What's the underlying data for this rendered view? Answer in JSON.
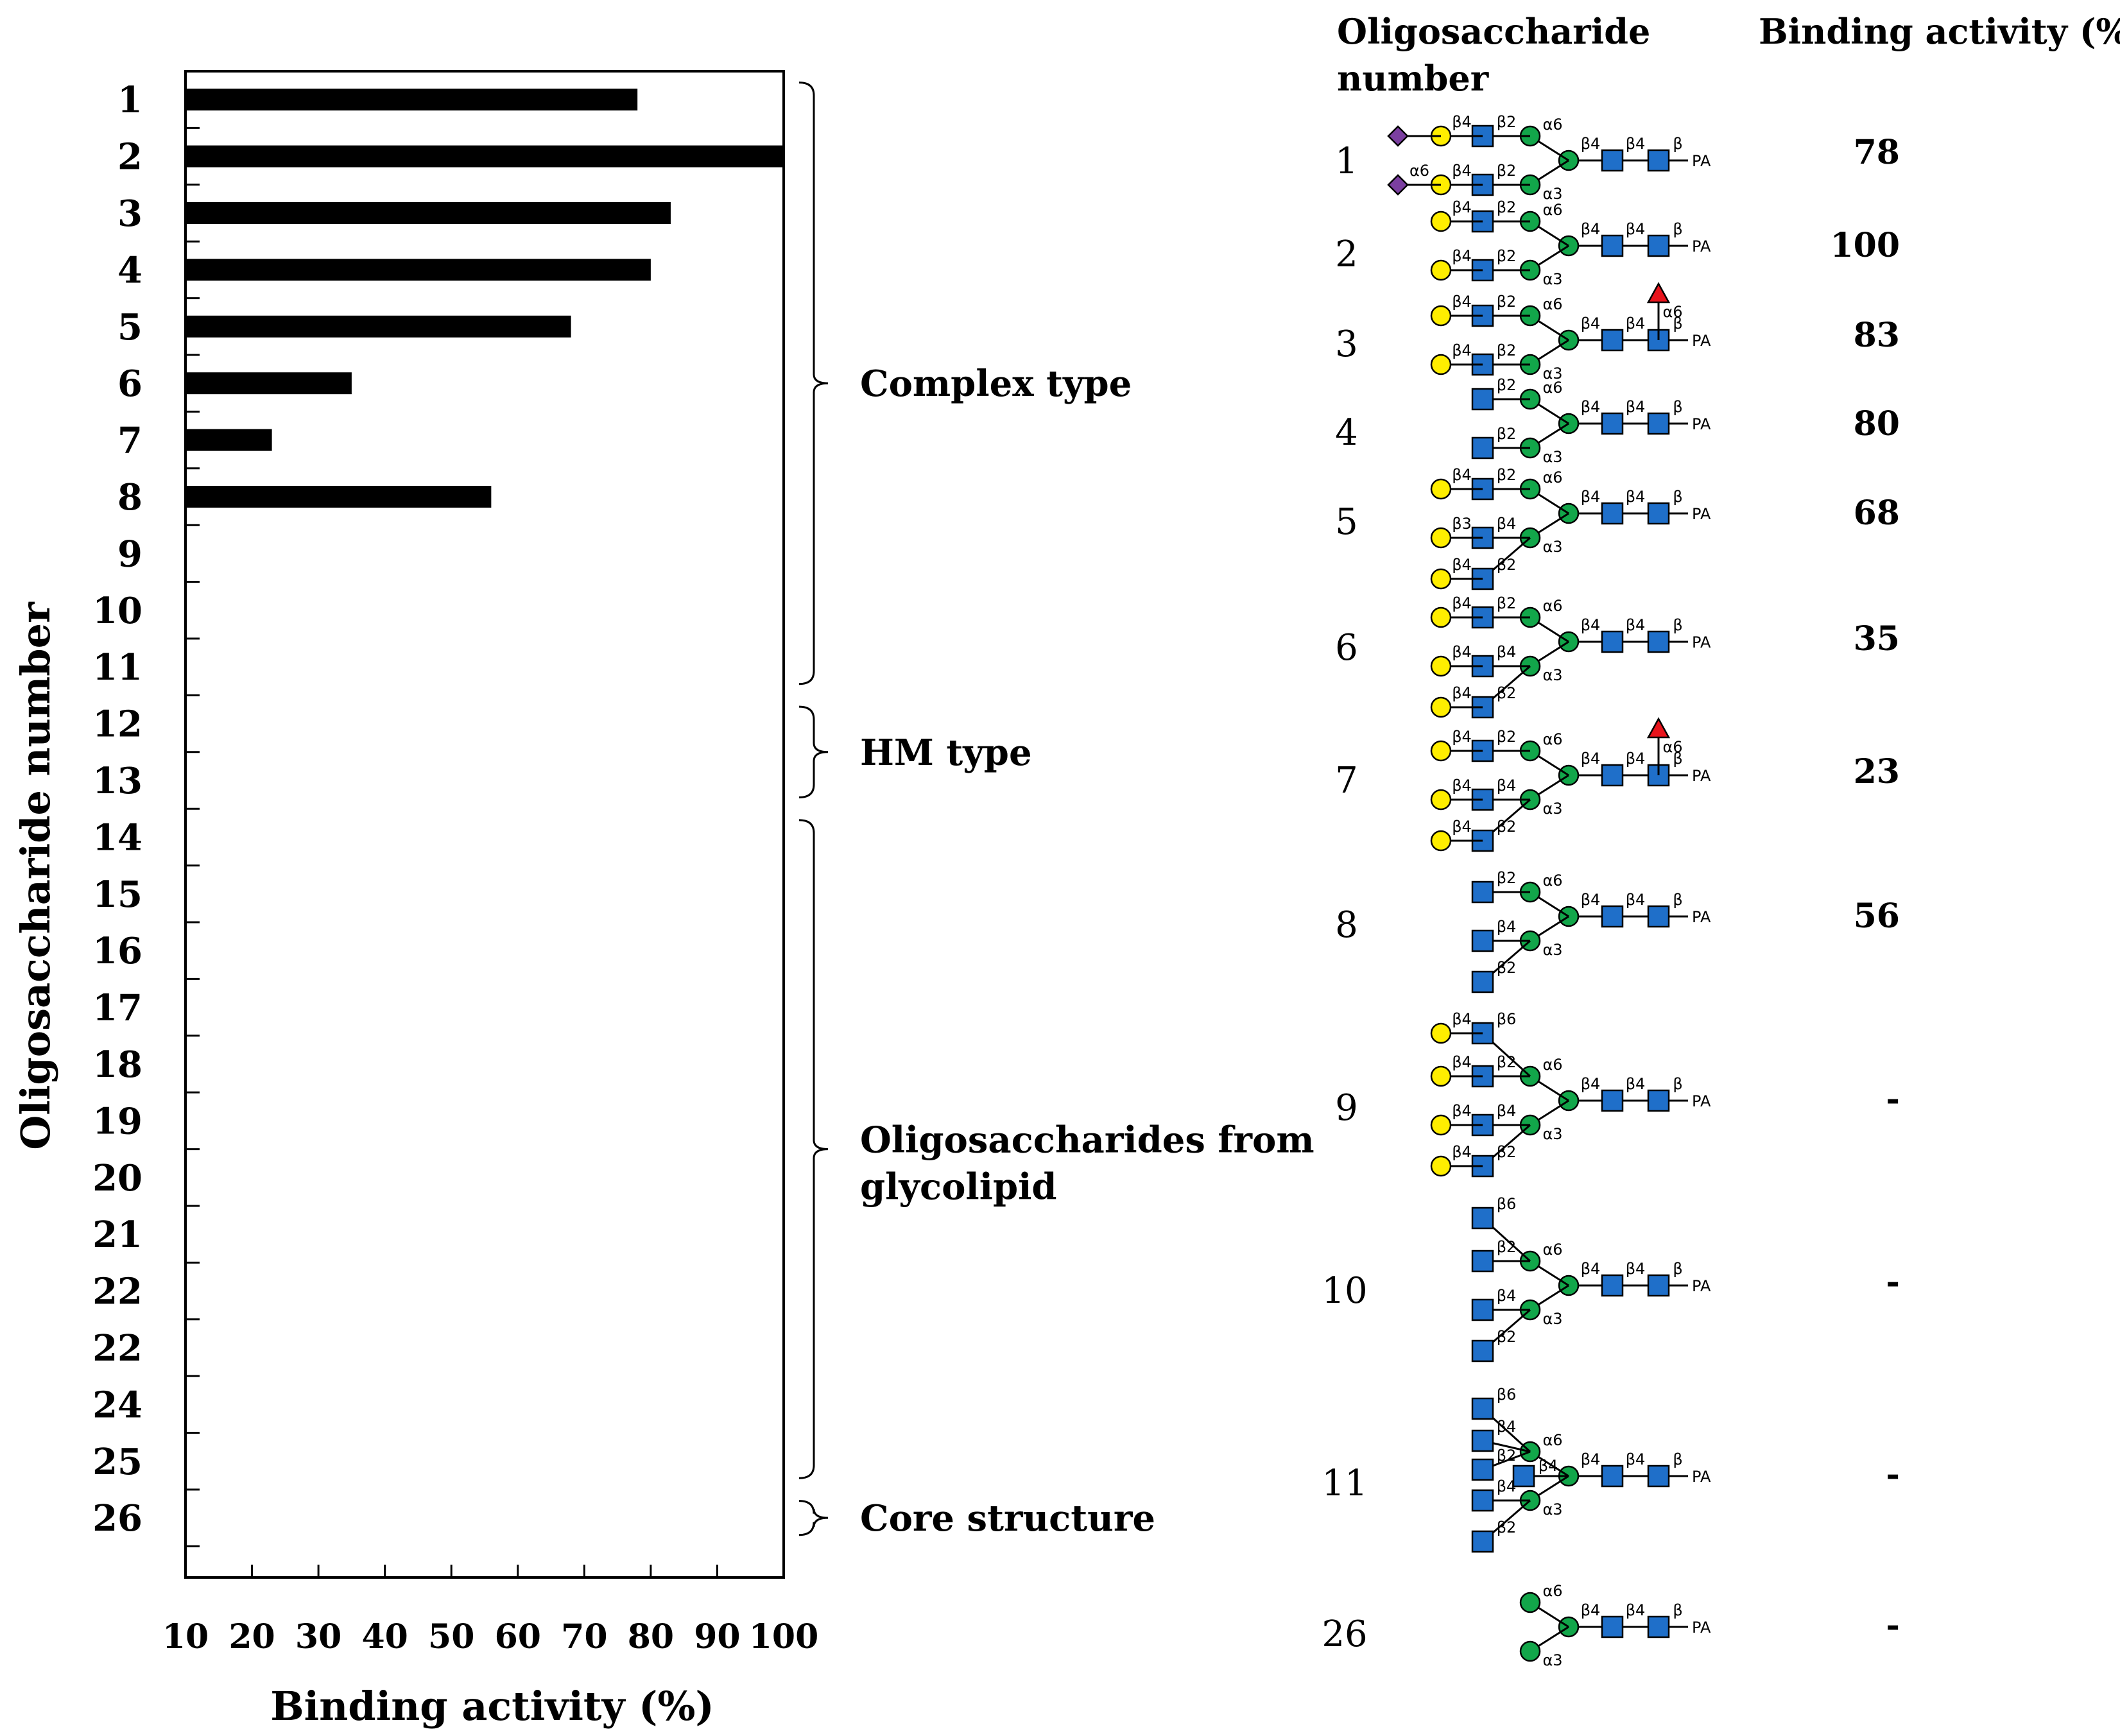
{
  "chart_data": {
    "type": "bar",
    "orientation": "horizontal",
    "ylabel": "Oligosaccharide number",
    "xlabel": "Binding activity (%)",
    "xlim": [
      10,
      100
    ],
    "xticks": [
      "10",
      "20",
      "30",
      "40",
      "50",
      "60",
      "70",
      "80",
      "90",
      "100"
    ],
    "categories": [
      "1",
      "2",
      "3",
      "4",
      "5",
      "6",
      "7",
      "8",
      "9",
      "10",
      "11",
      "12",
      "13",
      "14",
      "15",
      "16",
      "17",
      "18",
      "19",
      "20",
      "21",
      "22",
      "22",
      "24",
      "25",
      "26"
    ],
    "values": [
      78,
      100,
      83,
      80,
      68,
      35,
      23,
      56,
      null,
      null,
      null,
      null,
      null,
      null,
      null,
      null,
      null,
      null,
      null,
      null,
      null,
      null,
      null,
      null,
      null,
      null
    ],
    "bar_color": "#000000",
    "grid": false,
    "groups": [
      {
        "label": "Complex type",
        "from": 1,
        "to": 11
      },
      {
        "label": "HM type",
        "from": 12,
        "to": 13
      },
      {
        "label": "Oligosaccharides from glycolipid",
        "from": 14,
        "to": 25
      },
      {
        "label": "Core structure",
        "from": 26,
        "to": 26
      }
    ]
  },
  "table": {
    "header_number": "Oligosaccharide number",
    "header_activity": "Binding activity (%)",
    "rows": [
      {
        "number": "1",
        "activity": "78"
      },
      {
        "number": "2",
        "activity": "100"
      },
      {
        "number": "3",
        "activity": "83"
      },
      {
        "number": "4",
        "activity": "80"
      },
      {
        "number": "5",
        "activity": "68"
      },
      {
        "number": "6",
        "activity": "35"
      },
      {
        "number": "7",
        "activity": "23"
      },
      {
        "number": "8",
        "activity": "56"
      },
      {
        "number": "9",
        "activity": "-"
      },
      {
        "number": "10",
        "activity": "-"
      },
      {
        "number": "11",
        "activity": "-"
      },
      {
        "number": "26",
        "activity": "-"
      }
    ]
  },
  "glycan_legend": {
    "sialic_acid_color": "#7B3FA0",
    "galactose_color": "#FFEE00",
    "glcnac_color": "#1F6FC9",
    "mannose_color": "#12A64A",
    "fucose_color": "#E8141C",
    "reducing_end_label": "PA"
  }
}
